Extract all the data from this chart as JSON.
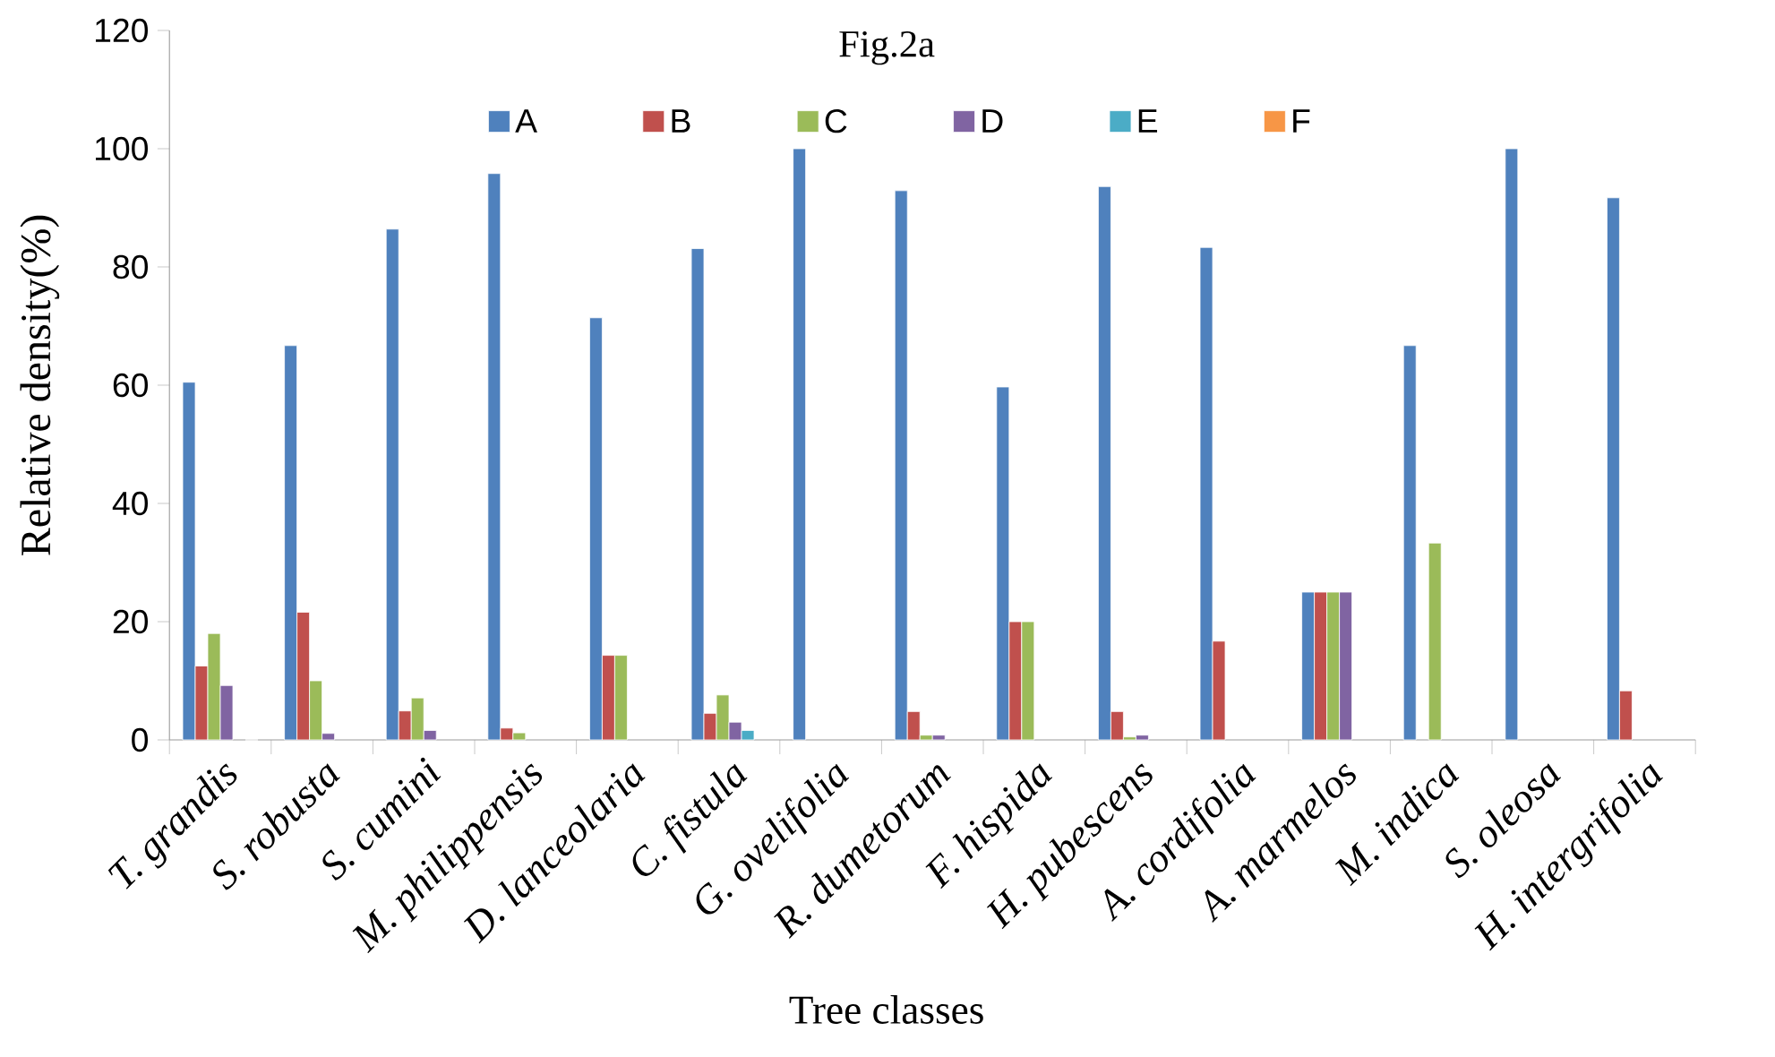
{
  "chart_data": {
    "type": "bar",
    "title": "Fig.2a",
    "xlabel": "Tree classes",
    "ylabel": "Relative density(%)",
    "categories": [
      "T. grandis",
      "S. robusta",
      "S. cumini",
      "M. philippensis",
      "D. lanceolaria",
      "C. fistula",
      "G. ovelifolia",
      "R. dumetorum",
      "F. hispida",
      "H. pubescens",
      "A. cordifolia",
      "A. marmelos",
      "M. indica",
      "S. oleosa",
      "H. intergrifolia"
    ],
    "series": [
      {
        "name": "A",
        "color": "#4f81bd",
        "values": [
          60.5,
          66.7,
          86.4,
          95.8,
          71.4,
          83.1,
          100,
          92.9,
          59.7,
          93.6,
          83.3,
          25,
          66.7,
          100,
          91.7
        ]
      },
      {
        "name": "B",
        "color": "#c0504d",
        "values": [
          12.5,
          21.6,
          4.9,
          2,
          14.3,
          4.5,
          null,
          4.8,
          20,
          4.8,
          16.7,
          25,
          null,
          null,
          8.3
        ]
      },
      {
        "name": "C",
        "color": "#9bbb59",
        "values": [
          18,
          10,
          7.1,
          1.2,
          14.3,
          7.6,
          null,
          0.8,
          20,
          0.5,
          null,
          25,
          33.3,
          null,
          null
        ]
      },
      {
        "name": "D",
        "color": "#8064a2",
        "values": [
          9.2,
          1.1,
          1.6,
          null,
          null,
          3,
          null,
          0.8,
          null,
          0.8,
          null,
          25,
          null,
          null,
          null
        ]
      },
      {
        "name": "E",
        "color": "#4bacc6",
        "values": [
          null,
          null,
          null,
          null,
          null,
          1.6,
          null,
          null,
          null,
          null,
          null,
          null,
          null,
          null,
          null
        ]
      },
      {
        "name": "F",
        "color": "#f79646",
        "values": [
          null,
          null,
          null,
          null,
          null,
          null,
          null,
          null,
          null,
          null,
          null,
          null,
          null,
          null,
          null
        ]
      }
    ],
    "ylim": [
      0,
      120
    ],
    "yticks": [
      0,
      20,
      40,
      60,
      80,
      100,
      120
    ],
    "legend": "top"
  }
}
